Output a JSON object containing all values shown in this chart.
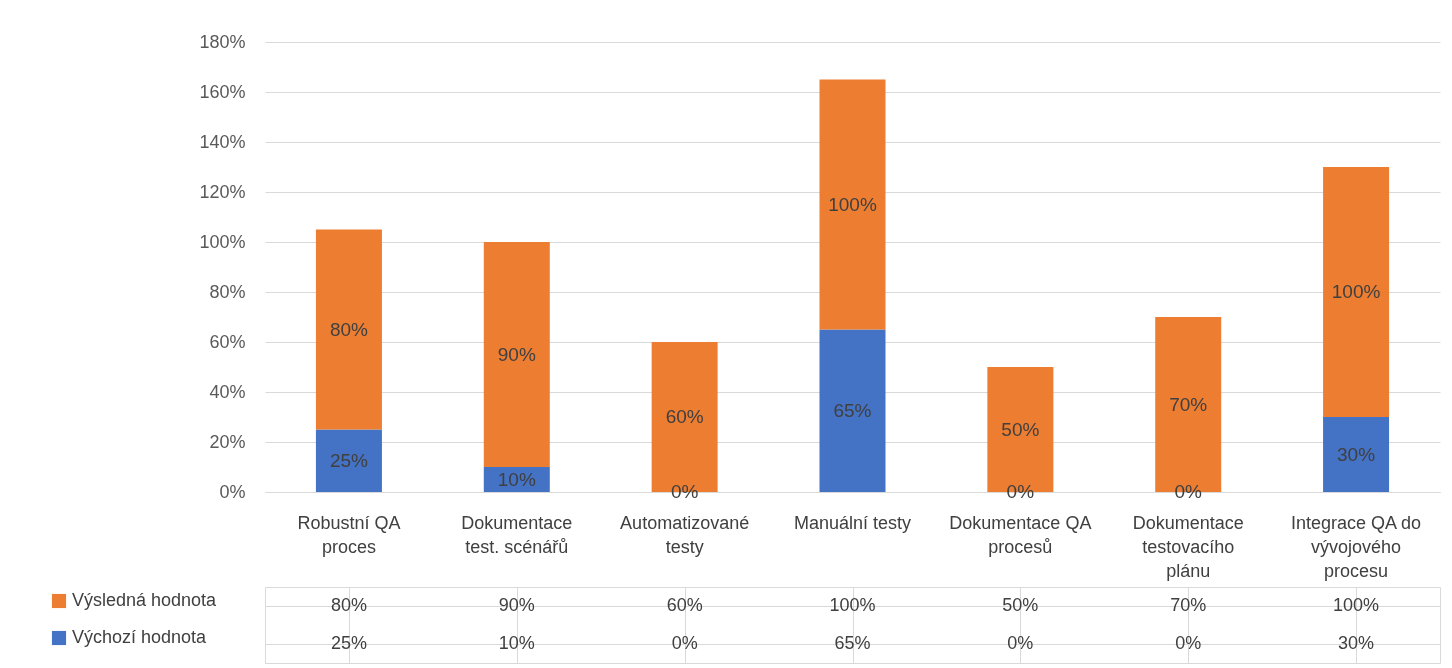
{
  "chart_data": {
    "type": "bar",
    "stacked": true,
    "categories": [
      "Robustní QA proces",
      "Dokumentace test. scénářů",
      "Automatizované testy",
      "Manuální testy",
      "Dokumentace QA procesů",
      "Dokumentace testovacího plánu",
      "Integrace QA do vývojového procesu"
    ],
    "series": [
      {
        "name": "Výchozí hodnota",
        "color": "#4472c4",
        "values": [
          25,
          10,
          0,
          65,
          0,
          0,
          30
        ],
        "value_labels": [
          "25%",
          "10%",
          "0%",
          "65%",
          "0%",
          "0%",
          "30%"
        ]
      },
      {
        "name": "Výsledná hodnota",
        "color": "#ed7d31",
        "values": [
          80,
          90,
          60,
          100,
          50,
          70,
          100
        ],
        "value_labels": [
          "80%",
          "90%",
          "60%",
          "100%",
          "50%",
          "70%",
          "100%"
        ]
      }
    ],
    "ylim": [
      0,
      180
    ],
    "yticks": [
      {
        "value": 0,
        "label": "0%"
      },
      {
        "value": 20,
        "label": "20%"
      },
      {
        "value": 40,
        "label": "40%"
      },
      {
        "value": 60,
        "label": "60%"
      },
      {
        "value": 80,
        "label": "80%"
      },
      {
        "value": 100,
        "label": "100%"
      },
      {
        "value": 120,
        "label": "120%"
      },
      {
        "value": 140,
        "label": "140%"
      },
      {
        "value": 160,
        "label": "160%"
      },
      {
        "value": 180,
        "label": "180%"
      }
    ],
    "grid": "y",
    "legend": "bottom left"
  }
}
